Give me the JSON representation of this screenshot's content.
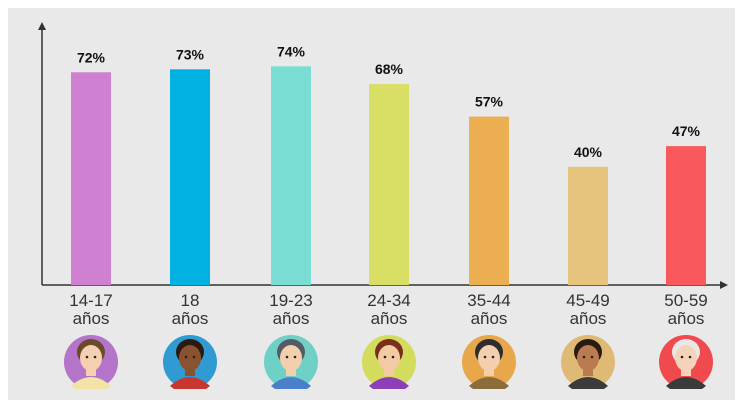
{
  "chart_data": {
    "type": "bar",
    "categories": [
      "14-17 años",
      "18 años",
      "19-23 años",
      "24-34 años",
      "35-44 años",
      "45-49 años",
      "50-59 años"
    ],
    "values": [
      72,
      73,
      74,
      68,
      57,
      40,
      47
    ],
    "value_labels": [
      "72%",
      "73%",
      "74%",
      "68%",
      "57%",
      "40%",
      "47%"
    ],
    "colors": [
      "#cf80d0",
      "#00b1e1",
      "#79ddd3",
      "#d9df64",
      "#ebae50",
      "#e6c47e",
      "#f9595c"
    ],
    "ylim": [
      0,
      88
    ]
  }
}
